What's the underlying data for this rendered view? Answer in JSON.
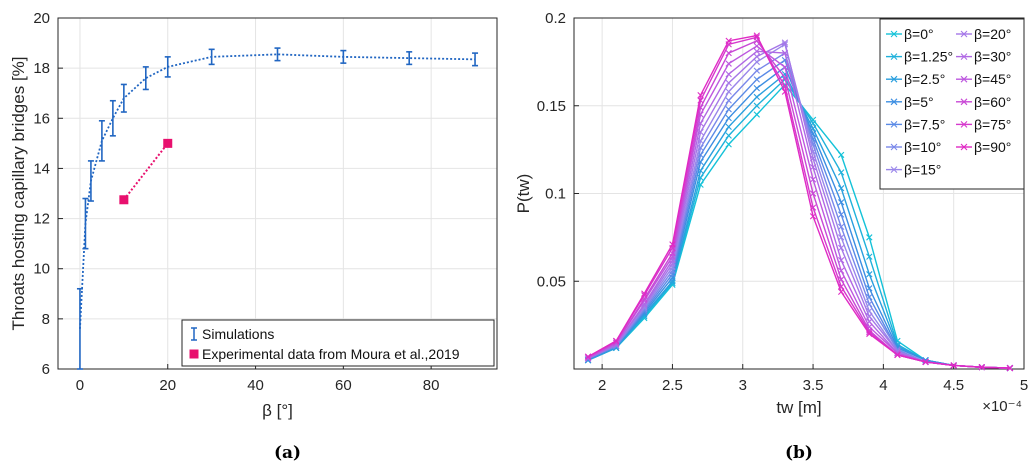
{
  "captions": {
    "left": "(a)",
    "right": "(b)"
  },
  "chart_data": [
    {
      "type": "line",
      "xlabel": "β [°]",
      "ylabel": "Throats hosting capillary bridges [%]",
      "xlim": [
        -5,
        95
      ],
      "ylim": [
        6,
        20
      ],
      "xticks": [
        0,
        20,
        40,
        60,
        80
      ],
      "yticks": [
        6,
        8,
        10,
        12,
        14,
        16,
        18,
        20
      ],
      "grid": true,
      "legend_position": "bottom-right",
      "series": [
        {
          "name": "Simulations",
          "color": "#2166c2",
          "style": "dotted-errorbar",
          "x": [
            0,
            1.25,
            2.5,
            5,
            7.5,
            10,
            15,
            20,
            30,
            45,
            60,
            75,
            90
          ],
          "y": [
            7.6,
            11.8,
            13.5,
            15.1,
            16.0,
            16.8,
            17.6,
            18.05,
            18.45,
            18.55,
            18.45,
            18.4,
            18.35
          ],
          "err": [
            1.6,
            1.0,
            0.8,
            0.8,
            0.7,
            0.55,
            0.45,
            0.4,
            0.3,
            0.25,
            0.25,
            0.25,
            0.25
          ]
        },
        {
          "name": "Experimental data from Moura et al.,2019",
          "color": "#e8106e",
          "style": "dotted-square",
          "x": [
            10,
            20
          ],
          "y": [
            12.75,
            15.0
          ]
        }
      ]
    },
    {
      "type": "line",
      "xlabel": "t_w [m]",
      "ylabel": "P(t_w)",
      "x_multiplier": "×10⁻⁴",
      "xlim": [
        1.8,
        5.0
      ],
      "ylim": [
        0,
        0.2
      ],
      "xticks": [
        2,
        2.5,
        3,
        3.5,
        4,
        4.5,
        5
      ],
      "xtick_labels": [
        "2",
        "2.5",
        "3",
        "3.5",
        "4",
        "4.5",
        "5"
      ],
      "yticks": [
        0.05,
        0.1,
        0.15,
        0.2
      ],
      "ytick_labels": [
        "0.05",
        "0.1",
        "0.15",
        "0.2"
      ],
      "grid": true,
      "legend_position": "top-right",
      "x": [
        1.9,
        2.1,
        2.3,
        2.5,
        2.7,
        2.9,
        3.1,
        3.3,
        3.5,
        3.7,
        3.9,
        4.1,
        4.3,
        4.5,
        4.7,
        4.9
      ],
      "series": [
        {
          "name": "β=0°",
          "color": "#14c2d8",
          "values": [
            0.005,
            0.012,
            0.029,
            0.048,
            0.105,
            0.128,
            0.145,
            0.162,
            0.142,
            0.122,
            0.075,
            0.016,
            0.005,
            0.002,
            0.001,
            0.0005
          ]
        },
        {
          "name": "β=1.25°",
          "color": "#1fb1db",
          "values": [
            0.005,
            0.012,
            0.03,
            0.049,
            0.109,
            0.133,
            0.15,
            0.165,
            0.14,
            0.112,
            0.064,
            0.014,
            0.005,
            0.002,
            0.001,
            0.0005
          ]
        },
        {
          "name": "β=2.5°",
          "color": "#2a9fde",
          "values": [
            0.005,
            0.012,
            0.031,
            0.05,
            0.113,
            0.138,
            0.155,
            0.168,
            0.137,
            0.103,
            0.054,
            0.013,
            0.005,
            0.002,
            0.001,
            0.0005
          ]
        },
        {
          "name": "β=5°",
          "color": "#3c8ee2",
          "values": [
            0.005,
            0.013,
            0.032,
            0.052,
            0.118,
            0.143,
            0.16,
            0.172,
            0.134,
            0.095,
            0.046,
            0.012,
            0.005,
            0.002,
            0.001,
            0.0005
          ]
        },
        {
          "name": "β=7.5°",
          "color": "#5a8ae6",
          "values": [
            0.006,
            0.013,
            0.033,
            0.054,
            0.122,
            0.148,
            0.165,
            0.176,
            0.131,
            0.088,
            0.041,
            0.011,
            0.004,
            0.002,
            0.001,
            0.0005
          ]
        },
        {
          "name": "β=10°",
          "color": "#7a88ea",
          "values": [
            0.006,
            0.013,
            0.034,
            0.056,
            0.126,
            0.153,
            0.17,
            0.18,
            0.128,
            0.081,
            0.037,
            0.011,
            0.004,
            0.002,
            0.001,
            0.0005
          ]
        },
        {
          "name": "β=15°",
          "color": "#9a86ea",
          "values": [
            0.006,
            0.014,
            0.035,
            0.058,
            0.13,
            0.158,
            0.175,
            0.185,
            0.124,
            0.075,
            0.033,
            0.01,
            0.004,
            0.002,
            0.001,
            0.0005
          ]
        },
        {
          "name": "β=20°",
          "color": "#a577e8",
          "values": [
            0.006,
            0.014,
            0.036,
            0.06,
            0.135,
            0.163,
            0.178,
            0.186,
            0.12,
            0.069,
            0.03,
            0.01,
            0.004,
            0.002,
            0.001,
            0.0005
          ]
        },
        {
          "name": "β=30°",
          "color": "#b068e4",
          "values": [
            0.006,
            0.014,
            0.037,
            0.062,
            0.14,
            0.168,
            0.181,
            0.18,
            0.115,
            0.062,
            0.027,
            0.009,
            0.004,
            0.002,
            0.001,
            0.0005
          ]
        },
        {
          "name": "β=45°",
          "color": "#bd58df",
          "values": [
            0.006,
            0.015,
            0.039,
            0.064,
            0.145,
            0.174,
            0.184,
            0.172,
            0.108,
            0.056,
            0.024,
            0.009,
            0.004,
            0.002,
            0.001,
            0.0005
          ]
        },
        {
          "name": "β=60°",
          "color": "#c948d6",
          "values": [
            0.007,
            0.015,
            0.04,
            0.066,
            0.149,
            0.18,
            0.187,
            0.166,
            0.1,
            0.051,
            0.022,
            0.008,
            0.004,
            0.002,
            0.001,
            0.0005
          ]
        },
        {
          "name": "β=75°",
          "color": "#d638cd",
          "values": [
            0.007,
            0.016,
            0.042,
            0.069,
            0.153,
            0.185,
            0.189,
            0.161,
            0.092,
            0.047,
            0.021,
            0.008,
            0.004,
            0.002,
            0.001,
            0.0005
          ]
        },
        {
          "name": "β=90°",
          "color": "#e02ac4",
          "values": [
            0.007,
            0.016,
            0.043,
            0.071,
            0.156,
            0.187,
            0.19,
            0.158,
            0.087,
            0.044,
            0.02,
            0.008,
            0.004,
            0.002,
            0.001,
            0.0005
          ]
        }
      ]
    }
  ]
}
